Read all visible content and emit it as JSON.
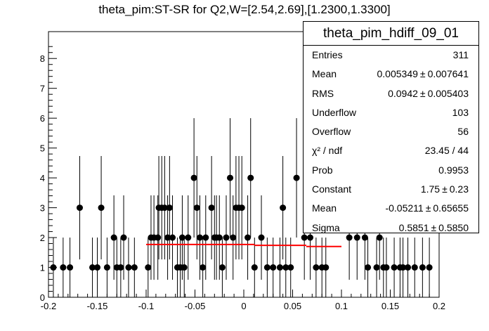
{
  "title": "theta_pim:ST-SR for Q2,W=[2.54,2.69],[1.2300,1.3300]",
  "stats_box": {
    "title": "theta_pim_hdiff_09_01",
    "rows": [
      {
        "label": "Entries",
        "value": "311",
        "error": ""
      },
      {
        "label": "Mean",
        "value": "0.005349",
        "error": "0.007641"
      },
      {
        "label": "RMS",
        "value": "0.0942",
        "error": "0.005403"
      },
      {
        "label": "Underflow",
        "value": "103",
        "error": ""
      },
      {
        "label": "Overflow",
        "value": "56",
        "error": ""
      },
      {
        "label": "χ² / ndf",
        "value": "23.45 / 44",
        "error": ""
      },
      {
        "label": "Prob",
        "value": "0.9953",
        "error": ""
      },
      {
        "label": "Constant",
        "value": "1.75",
        "error": "0.23"
      },
      {
        "label": "Mean",
        "value": "-0.05211",
        "error": "0.65655"
      },
      {
        "label": "Sigma",
        "value": "0.5851",
        "error": "0.5850"
      }
    ]
  },
  "chart_data": {
    "type": "scatter",
    "title": "theta_pim:ST-SR for Q2,W=[2.54,2.69],[1.2300,1.3300]",
    "xlabel": "",
    "ylabel": "",
    "xlim": [
      -0.2,
      0.2
    ],
    "ylim": [
      0,
      8.9
    ],
    "grid": false,
    "x_ticks": [
      -0.2,
      -0.15,
      -0.1,
      -0.05,
      0,
      0.05,
      0.1,
      0.15,
      0.2
    ],
    "y_ticks": [
      0,
      1,
      2,
      3,
      4,
      5,
      6,
      7,
      8
    ],
    "points": [
      {
        "x": -0.195,
        "y": 1
      },
      {
        "x": -0.185,
        "y": 1
      },
      {
        "x": -0.178,
        "y": 1
      },
      {
        "x": -0.168,
        "y": 3
      },
      {
        "x": -0.155,
        "y": 1
      },
      {
        "x": -0.15,
        "y": 1
      },
      {
        "x": -0.146,
        "y": 3
      },
      {
        "x": -0.14,
        "y": 1
      },
      {
        "x": -0.133,
        "y": 2
      },
      {
        "x": -0.13,
        "y": 1
      },
      {
        "x": -0.126,
        "y": 1
      },
      {
        "x": -0.123,
        "y": 2
      },
      {
        "x": -0.118,
        "y": 1
      },
      {
        "x": -0.112,
        "y": 1
      },
      {
        "x": -0.098,
        "y": 1
      },
      {
        "x": -0.095,
        "y": 2
      },
      {
        "x": -0.092,
        "y": 2
      },
      {
        "x": -0.088,
        "y": 2
      },
      {
        "x": -0.087,
        "y": 3
      },
      {
        "x": -0.084,
        "y": 3
      },
      {
        "x": -0.081,
        "y": 3
      },
      {
        "x": -0.078,
        "y": 2
      },
      {
        "x": -0.076,
        "y": 3
      },
      {
        "x": -0.073,
        "y": 2
      },
      {
        "x": -0.068,
        "y": 1
      },
      {
        "x": -0.065,
        "y": 1
      },
      {
        "x": -0.063,
        "y": 2
      },
      {
        "x": -0.061,
        "y": 1
      },
      {
        "x": -0.057,
        "y": 2
      },
      {
        "x": -0.051,
        "y": 4
      },
      {
        "x": -0.048,
        "y": 3
      },
      {
        "x": -0.045,
        "y": 2
      },
      {
        "x": -0.042,
        "y": 1
      },
      {
        "x": -0.039,
        "y": 2
      },
      {
        "x": -0.033,
        "y": 3
      },
      {
        "x": -0.03,
        "y": 2
      },
      {
        "x": -0.028,
        "y": 2
      },
      {
        "x": -0.025,
        "y": 2
      },
      {
        "x": -0.022,
        "y": 1
      },
      {
        "x": -0.018,
        "y": 2
      },
      {
        "x": -0.014,
        "y": 4
      },
      {
        "x": -0.011,
        "y": 2
      },
      {
        "x": -0.008,
        "y": 3
      },
      {
        "x": -0.005,
        "y": 3
      },
      {
        "x": -0.002,
        "y": 3
      },
      {
        "x": 0.004,
        "y": 2
      },
      {
        "x": 0.007,
        "y": 4
      },
      {
        "x": 0.011,
        "y": 1
      },
      {
        "x": 0.018,
        "y": 2
      },
      {
        "x": 0.024,
        "y": 1
      },
      {
        "x": 0.03,
        "y": 1
      },
      {
        "x": 0.037,
        "y": 1
      },
      {
        "x": 0.04,
        "y": 3
      },
      {
        "x": 0.043,
        "y": 1
      },
      {
        "x": 0.048,
        "y": 1
      },
      {
        "x": 0.054,
        "y": 4
      },
      {
        "x": 0.062,
        "y": 2
      },
      {
        "x": 0.068,
        "y": 2
      },
      {
        "x": 0.074,
        "y": 1
      },
      {
        "x": 0.08,
        "y": 1
      },
      {
        "x": 0.084,
        "y": 1
      },
      {
        "x": 0.108,
        "y": 2
      },
      {
        "x": 0.116,
        "y": 2
      },
      {
        "x": 0.124,
        "y": 2
      },
      {
        "x": 0.127,
        "y": 1
      },
      {
        "x": 0.136,
        "y": 1
      },
      {
        "x": 0.139,
        "y": 2
      },
      {
        "x": 0.143,
        "y": 1
      },
      {
        "x": 0.146,
        "y": 1
      },
      {
        "x": 0.154,
        "y": 1
      },
      {
        "x": 0.16,
        "y": 1
      },
      {
        "x": 0.163,
        "y": 1
      },
      {
        "x": 0.168,
        "y": 1
      },
      {
        "x": 0.175,
        "y": 1
      },
      {
        "x": 0.183,
        "y": 1
      },
      {
        "x": 0.19,
        "y": 1
      }
    ],
    "fit": {
      "color": "#ff0000",
      "segments": [
        {
          "x1": -0.1,
          "x2": 0.011,
          "y": 1.77
        },
        {
          "x1": 0.011,
          "x2": 0.064,
          "y": 1.74
        },
        {
          "x1": 0.064,
          "x2": 0.1,
          "y": 1.7
        }
      ]
    },
    "marker_color": "#000000"
  }
}
